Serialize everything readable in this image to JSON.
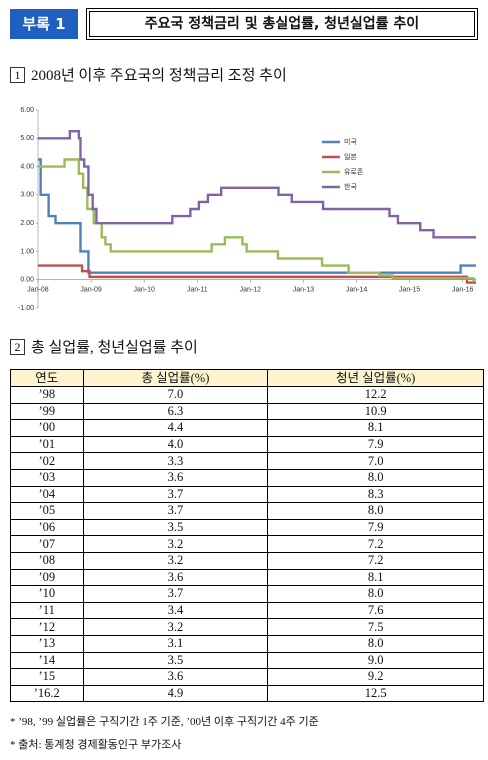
{
  "header": {
    "badge": "부록 1",
    "title": "주요국 정책금리 및 총실업률, 청년실업률 추이"
  },
  "section1": {
    "number": "1",
    "title": "2008년 이후 주요국의 정책금리 조정 추이"
  },
  "chart_data": {
    "type": "line",
    "xlim": [
      2008,
      2016.25
    ],
    "xticks": [
      {
        "value": 2008,
        "label": "Jan-08"
      },
      {
        "value": 2009,
        "label": "Jan-09"
      },
      {
        "value": 2010,
        "label": "Jan-10"
      },
      {
        "value": 2011,
        "label": "Jan-11"
      },
      {
        "value": 2012,
        "label": "Jan-12"
      },
      {
        "value": 2013,
        "label": "Jan-13"
      },
      {
        "value": 2014,
        "label": "Jan-14"
      },
      {
        "value": 2015,
        "label": "Jan-15"
      },
      {
        "value": 2016,
        "label": "Jan-16"
      }
    ],
    "ylim": [
      -1,
      6
    ],
    "yticks": [
      {
        "value": -1,
        "label": "-1.00"
      },
      {
        "value": 0,
        "label": "0.00"
      },
      {
        "value": 1,
        "label": "1.00"
      },
      {
        "value": 2,
        "label": "2.00"
      },
      {
        "value": 3,
        "label": "3.00"
      },
      {
        "value": 4,
        "label": "4.00"
      },
      {
        "value": 5,
        "label": "5.00"
      },
      {
        "value": 6,
        "label": "6.00"
      }
    ],
    "series": [
      {
        "name": "미국",
        "color": "#4f81bd",
        "x": [
          2008,
          2008.05,
          2008.05,
          2008.2,
          2008.2,
          2008.33,
          2008.33,
          2008.8,
          2008.8,
          2008.95,
          2008.95,
          2015.96,
          2015.96,
          2016.25
        ],
        "values": [
          4.25,
          4.25,
          3.0,
          3.0,
          2.25,
          2.25,
          2.0,
          2.0,
          1.0,
          1.0,
          0.25,
          0.25,
          0.5,
          0.5
        ]
      },
      {
        "name": "일본",
        "color": "#c0504d",
        "x": [
          2008,
          2008.83,
          2008.83,
          2008.97,
          2008.97,
          2016.08,
          2016.08,
          2016.25
        ],
        "values": [
          0.5,
          0.5,
          0.3,
          0.3,
          0.1,
          0.1,
          -0.1,
          -0.1
        ]
      },
      {
        "name": "유로존",
        "color": "#9bbb59",
        "x": [
          2008,
          2008.5,
          2008.5,
          2008.77,
          2008.77,
          2008.85,
          2008.85,
          2008.93,
          2008.93,
          2009.05,
          2009.05,
          2009.2,
          2009.2,
          2009.27,
          2009.27,
          2009.37,
          2009.37,
          2011.27,
          2011.27,
          2011.52,
          2011.52,
          2011.85,
          2011.85,
          2011.93,
          2011.93,
          2012.52,
          2012.52,
          2013.35,
          2013.35,
          2013.85,
          2013.85,
          2014.43,
          2014.43,
          2014.68,
          2014.68,
          2016.2,
          2016.2,
          2016.25
        ],
        "values": [
          4.0,
          4.0,
          4.25,
          4.25,
          3.75,
          3.75,
          3.25,
          3.25,
          2.5,
          2.5,
          2.0,
          2.0,
          1.5,
          1.5,
          1.25,
          1.25,
          1.0,
          1.0,
          1.25,
          1.25,
          1.5,
          1.5,
          1.25,
          1.25,
          1.0,
          1.0,
          0.75,
          0.75,
          0.5,
          0.5,
          0.25,
          0.25,
          0.15,
          0.15,
          0.05,
          0.05,
          0.0,
          0.0
        ]
      },
      {
        "name": "한국",
        "color": "#8064a2",
        "x": [
          2008,
          2008.6,
          2008.6,
          2008.77,
          2008.77,
          2008.8,
          2008.8,
          2008.87,
          2008.87,
          2008.95,
          2008.95,
          2009.03,
          2009.03,
          2009.1,
          2009.1,
          2010.53,
          2010.53,
          2010.87,
          2010.87,
          2011.03,
          2011.03,
          2011.2,
          2011.2,
          2011.45,
          2011.45,
          2012.53,
          2012.53,
          2012.78,
          2012.78,
          2013.37,
          2013.37,
          2014.62,
          2014.62,
          2014.78,
          2014.78,
          2015.2,
          2015.2,
          2015.45,
          2015.45,
          2016.25
        ],
        "values": [
          5.0,
          5.0,
          5.25,
          5.25,
          5.0,
          5.0,
          4.25,
          4.25,
          4.0,
          4.0,
          3.0,
          3.0,
          2.5,
          2.5,
          2.0,
          2.0,
          2.25,
          2.25,
          2.5,
          2.5,
          2.75,
          2.75,
          3.0,
          3.0,
          3.25,
          3.25,
          3.0,
          3.0,
          2.75,
          2.75,
          2.5,
          2.5,
          2.25,
          2.25,
          2.0,
          2.0,
          1.75,
          1.75,
          1.5,
          1.5
        ]
      }
    ],
    "legend": "upper right"
  },
  "section2": {
    "number": "2",
    "title": "총 실업률, 청년실업률 추이"
  },
  "table": {
    "header": [
      "연도",
      "총 실업률(%)",
      "청년 실업률(%)"
    ],
    "rows": [
      [
        "’98",
        "7.0",
        "12.2"
      ],
      [
        "’99",
        "6.3",
        "10.9"
      ],
      [
        "’00",
        "4.4",
        "8.1"
      ],
      [
        "’01",
        "4.0",
        "7.9"
      ],
      [
        "’02",
        "3.3",
        "7.0"
      ],
      [
        "’03",
        "3.6",
        "8.0"
      ],
      [
        "’04",
        "3.7",
        "8.3"
      ],
      [
        "’05",
        "3.7",
        "8.0"
      ],
      [
        "’06",
        "3.5",
        "7.9"
      ],
      [
        "’07",
        "3.2",
        "7.2"
      ],
      [
        "’08",
        "3.2",
        "7.2"
      ],
      [
        "’09",
        "3.6",
        "8.1"
      ],
      [
        "’10",
        "3.7",
        "8.0"
      ],
      [
        "’11",
        "3.4",
        "7.6"
      ],
      [
        "’12",
        "3.2",
        "7.5"
      ],
      [
        "’13",
        "3.1",
        "8.0"
      ],
      [
        "’14",
        "3.5",
        "9.0"
      ],
      [
        "’15",
        "3.6",
        "9.2"
      ],
      [
        "’16.2",
        "4.9",
        "12.5"
      ]
    ]
  },
  "footnotes": [
    "* ’98, ’99 실업률은 구직기간 1주 기준, ’00년 이후 구직기간 4주 기준",
    "* 출처: 통계청 경제활동인구 부가조사"
  ]
}
